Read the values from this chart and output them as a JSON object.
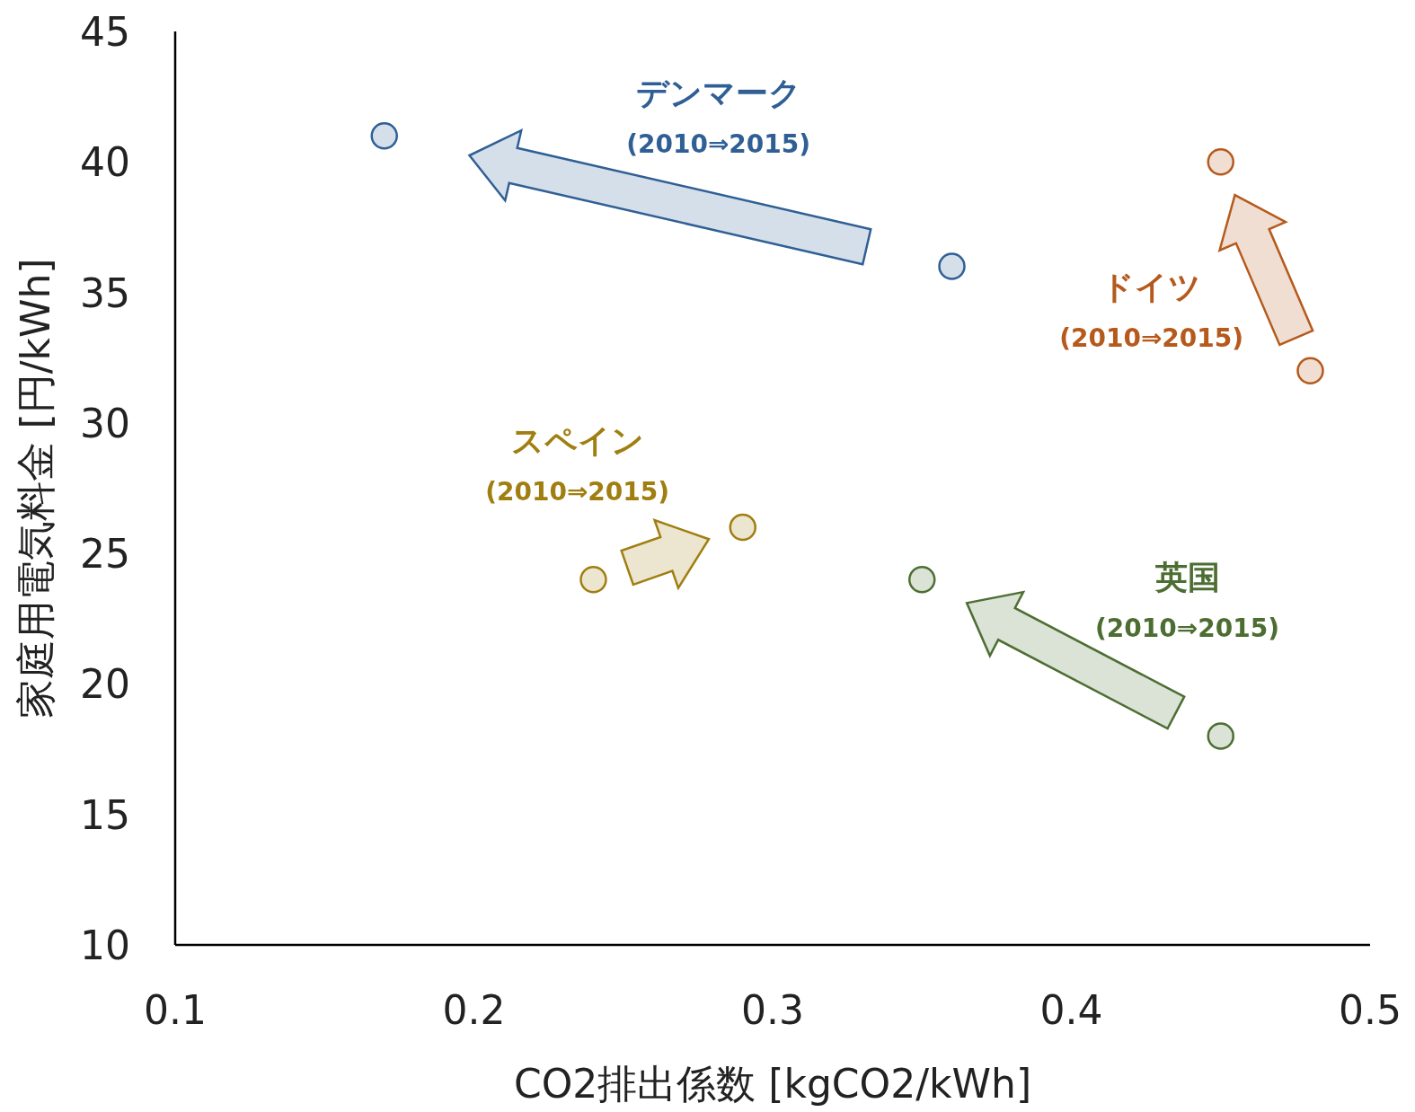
{
  "chart_data": {
    "type": "scatter",
    "xlabel": "CO2排出係数 [kgCO2/kWh]",
    "ylabel": "家庭用電気料金 [円/kWh]",
    "xlim": [
      0.1,
      0.5
    ],
    "xticks": [
      0.1,
      0.2,
      0.3,
      0.4,
      0.5
    ],
    "ylim": [
      10,
      45
    ],
    "yticks": [
      10,
      15,
      20,
      25,
      30,
      35,
      40,
      45
    ],
    "grid": false,
    "marker": "circle",
    "series": [
      {
        "name": "デンマーク",
        "color": "#2f5f94",
        "x": [
          0.36,
          0.17
        ],
        "values": [
          36,
          41
        ]
      },
      {
        "name": "ドイツ",
        "color": "#b55a1c",
        "x": [
          0.48,
          0.45
        ],
        "values": [
          32,
          40
        ]
      },
      {
        "name": "スペイン",
        "color": "#a07e10",
        "x": [
          0.24,
          0.29
        ],
        "values": [
          24,
          26
        ]
      },
      {
        "name": "英国",
        "color": "#4d6e32",
        "x": [
          0.45,
          0.35
        ],
        "values": [
          18,
          24
        ]
      }
    ],
    "annotations": [
      "(2010⇒2015)",
      "(2010⇒2015)",
      "(2010⇒2015)",
      "(2010⇒2015)"
    ]
  }
}
